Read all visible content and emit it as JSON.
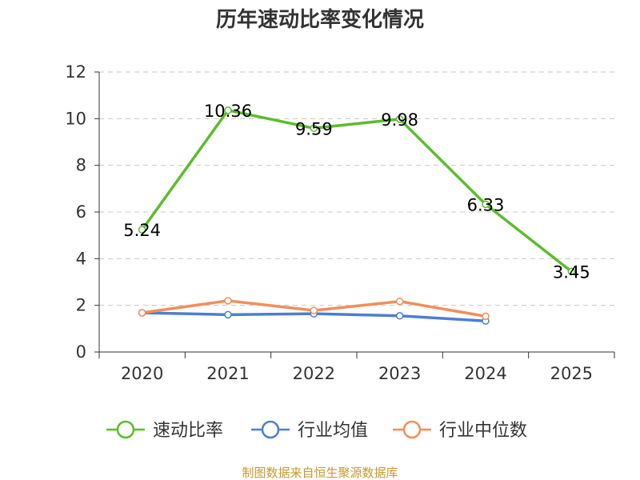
{
  "chart_data": {
    "type": "line",
    "title": "历年速动比率变化情况",
    "categories": [
      "2020",
      "2021",
      "2022",
      "2023",
      "2024",
      "2025"
    ],
    "ylim": [
      0,
      12
    ],
    "yticks": [
      0,
      2,
      4,
      6,
      8,
      10,
      12
    ],
    "grid": true,
    "legend_position": "bottom",
    "series": [
      {
        "name": "速动比率",
        "color": "#5bbd2b",
        "values": [
          5.24,
          10.36,
          9.59,
          9.98,
          6.33,
          3.45
        ],
        "labels": [
          "5.24",
          "10.36",
          "9.59",
          "9.98",
          "6.33",
          "3.45"
        ]
      },
      {
        "name": "行业均值",
        "color": "#4a7fd4",
        "values": [
          1.68,
          1.6,
          1.64,
          1.55,
          1.33,
          null
        ]
      },
      {
        "name": "行业中位数",
        "color": "#f28e5a",
        "values": [
          1.68,
          2.2,
          1.78,
          2.17,
          1.53,
          null
        ]
      }
    ],
    "source": "制图数据来自恒生聚源数据库"
  }
}
